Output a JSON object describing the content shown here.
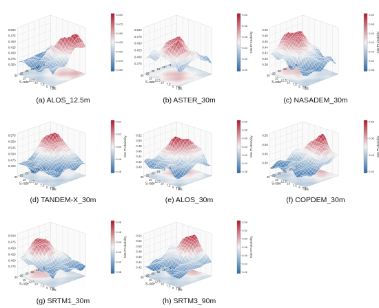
{
  "figure": {
    "background": "#ffffff"
  },
  "colorscale": {
    "low": "#2b6aa8",
    "mid": "#f2f2f2",
    "high": "#b2182b"
  },
  "chart_data": [
    {
      "type": "surface3d",
      "caption": "(a) ALOS_12.5m",
      "zlim": [
        0.36,
        0.52
      ],
      "zticks": [
        "0.500",
        "0.475",
        "0.450",
        "0.425",
        "0.400",
        "0.375",
        "0.350"
      ],
      "colorbar_ticks": [
        "0.500",
        "0.475",
        "0.450",
        "0.425",
        "0.400",
        "0.375",
        "0.350"
      ],
      "colorbar_label": "",
      "xlabel": "S-rate",
      "ylabel": "TBI",
      "x_ticks": [
        "5",
        "10",
        "15",
        "20",
        "25",
        "30"
      ],
      "y_ticks": [
        "2.5",
        "5",
        "7.5",
        "10",
        "12.5",
        "15"
      ],
      "peak": [
        0.75,
        0.2
      ],
      "z_min": 0.36,
      "z_max": 0.52
    },
    {
      "type": "surface3d",
      "caption": "(b) ASTER_30m",
      "zlim": [
        0.38,
        0.51
      ],
      "zticks": [
        "0.500",
        "0.475",
        "0.450",
        "0.425",
        "0.400",
        "0.375"
      ],
      "colorbar_ticks": [
        "0.50",
        "0.48",
        "0.46",
        "0.44",
        "0.42",
        "0.40"
      ],
      "colorbar_label": "Site Probability",
      "xlabel": "S-rate",
      "ylabel": "TBI",
      "x_ticks": [
        "5",
        "10",
        "15",
        "20",
        "25",
        "30"
      ],
      "y_ticks": [
        "2.5",
        "5",
        "7.5",
        "10",
        "12.5",
        "15"
      ],
      "peak": [
        0.55,
        0.6
      ],
      "z_min": 0.38,
      "z_max": 0.51
    },
    {
      "type": "surface3d",
      "caption": "(c) NASADEM_30m",
      "zlim": [
        0.35,
        0.51
      ],
      "zticks": [
        "0.50",
        "0.48",
        "0.46",
        "0.44",
        "0.42",
        "0.40",
        "0.38"
      ],
      "colorbar_ticks": [
        "0.50",
        "0.48",
        "0.46",
        "0.44",
        "0.42",
        "0.40",
        "0.38"
      ],
      "colorbar_label": "Site Probability",
      "xlabel": "S-rate",
      "ylabel": "TBI",
      "x_ticks": [
        "5",
        "10",
        "15",
        "20",
        "25",
        "30"
      ],
      "y_ticks": [
        "2.5",
        "5",
        "7.5",
        "10",
        "12.5",
        "15"
      ],
      "peak": [
        0.2,
        0.5
      ],
      "z_min": 0.35,
      "z_max": 0.51
    },
    {
      "type": "surface3d",
      "caption": "(d) TANDEM-X_30m",
      "zlim": [
        0.44,
        0.58
      ],
      "zticks": [
        "0.575",
        "0.550",
        "0.525",
        "0.500",
        "0.475",
        "0.450"
      ],
      "colorbar_ticks": [
        "0.54",
        "0.52",
        "0.50",
        "0.48",
        "0.46"
      ],
      "colorbar_label": "Site Probability",
      "xlabel": "S-rate",
      "ylabel": "TBI",
      "x_ticks": [
        "5",
        "10",
        "15",
        "20",
        "25",
        "30"
      ],
      "y_ticks": [
        "2.5",
        "5",
        "7.5",
        "10",
        "12.5",
        "15"
      ],
      "peak": [
        0.25,
        0.15
      ],
      "z_min": 0.44,
      "z_max": 0.58
    },
    {
      "type": "surface3d",
      "caption": "(e) ALOS_30m",
      "zlim": [
        0.36,
        0.52
      ],
      "zticks": [
        "0.52",
        "0.50",
        "0.48",
        "0.46",
        "0.44",
        "0.42",
        "0.40"
      ],
      "colorbar_ticks": [
        "0.50",
        "0.48",
        "0.46",
        "0.44",
        "0.42",
        "0.40",
        "0.38"
      ],
      "colorbar_label": "Site Probability",
      "xlabel": "S-rate",
      "ylabel": "TBI",
      "x_ticks": [
        "5",
        "10",
        "15",
        "20",
        "25",
        "30"
      ],
      "y_ticks": [
        "2.5",
        "5",
        "7.5",
        "10",
        "12.5",
        "15"
      ],
      "peak": [
        0.4,
        0.3
      ],
      "z_min": 0.36,
      "z_max": 0.52
    },
    {
      "type": "surface3d",
      "caption": "(f) COPDEM_30m",
      "zlim": [
        0.38,
        0.56
      ],
      "zticks": [
        "0.55",
        "0.50",
        "0.45",
        "0.40"
      ],
      "colorbar_ticks": [
        "0.55",
        "0.50",
        "0.45",
        "0.40"
      ],
      "colorbar_label": "Site Probability",
      "xlabel": "S-rate",
      "ylabel": "TBI",
      "x_ticks": [
        "5",
        "10",
        "15",
        "20",
        "25",
        "30"
      ],
      "y_ticks": [
        "2.5",
        "5",
        "7.5",
        "10",
        "12.5",
        "15"
      ],
      "peak": [
        0.55,
        0.05
      ],
      "z_min": 0.38,
      "z_max": 0.56
    },
    {
      "type": "surface3d",
      "caption": "(g) SRTM1_30m",
      "zlim": [
        0.36,
        0.52
      ],
      "zticks": [
        "0.500",
        "0.475",
        "0.450",
        "0.425",
        "0.400",
        "0.375"
      ],
      "colorbar_ticks": [
        "0.48",
        "0.46",
        "0.44",
        "0.42",
        "0.40",
        "0.38"
      ],
      "colorbar_label": "Site Probability",
      "xlabel": "S-rate",
      "ylabel": "TBI",
      "x_ticks": [
        "5",
        "10",
        "15",
        "20",
        "25",
        "30"
      ],
      "y_ticks": [
        "2.5",
        "5",
        "7.5",
        "10",
        "12.5",
        "15"
      ],
      "peak": [
        0.2,
        0.5
      ],
      "z_min": 0.36,
      "z_max": 0.52
    },
    {
      "type": "surface3d",
      "caption": "(h) SRTM3_90m",
      "zlim": [
        0.4,
        0.55
      ],
      "zticks": [
        "0.54",
        "0.52",
        "0.50",
        "0.48",
        "0.46",
        "0.44",
        "0.42"
      ],
      "colorbar_ticks": [
        "0.54",
        "0.52",
        "0.50",
        "0.48",
        "0.46",
        "0.44",
        "0.42"
      ],
      "colorbar_label": "Site Probability",
      "xlabel": "S-rate",
      "ylabel": "TBI",
      "x_ticks": [
        "5",
        "10",
        "15",
        "20",
        "25",
        "30"
      ],
      "y_ticks": [
        "2.5",
        "5",
        "7.5",
        "10",
        "12.5",
        "15"
      ],
      "peak": [
        0.45,
        0.05
      ],
      "z_min": 0.4,
      "z_max": 0.55
    }
  ]
}
